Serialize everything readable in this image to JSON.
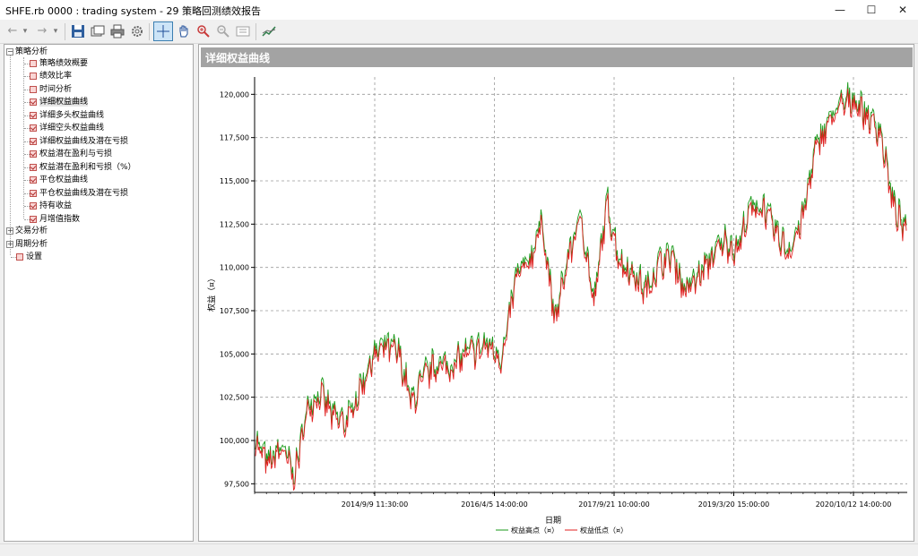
{
  "window": {
    "title": "SHFE.rb 0000 : trading system - 29 策略回测绩效报告",
    "minimize_glyph": "—",
    "maximize_glyph": "☐",
    "close_glyph": "✕"
  },
  "toolbar": {
    "back_glyph": "←",
    "back_drop_glyph": "▾",
    "forward_glyph": "→",
    "forward_drop_glyph": "▾",
    "icons": [
      "save-icon",
      "window-icon",
      "print-icon",
      "settings-icon",
      "crosshair-icon",
      "hand-icon",
      "zoom-in-icon",
      "zoom-out-icon",
      "page-icon",
      "chart-icon"
    ]
  },
  "tree": {
    "groups": [
      {
        "label": "策略分析",
        "expanded": true
      },
      {
        "label": "交易分析",
        "expanded": false
      },
      {
        "label": "周期分析",
        "expanded": false
      }
    ],
    "items": [
      {
        "label": "策略绩效概要",
        "icon": "table-icon"
      },
      {
        "label": "绩效比率",
        "icon": "table-icon"
      },
      {
        "label": "时间分析",
        "icon": "table-icon"
      },
      {
        "label": "详细权益曲线",
        "icon": "chart-icon",
        "selected": true
      },
      {
        "label": "详细多头权益曲线",
        "icon": "chart-icon"
      },
      {
        "label": "详细空头权益曲线",
        "icon": "chart-icon"
      },
      {
        "label": "详细权益曲线及潜在亏损",
        "icon": "chart-icon"
      },
      {
        "label": "权益潜在盈利与亏损",
        "icon": "chart-icon"
      },
      {
        "label": "权益潜在盈利和亏损（%）",
        "icon": "chart-icon"
      },
      {
        "label": "平仓权益曲线",
        "icon": "chart-icon"
      },
      {
        "label": "平仓权益曲线及潜在亏损",
        "icon": "chart-icon"
      },
      {
        "label": "持有收益",
        "icon": "chart-icon"
      },
      {
        "label": "月增值指数",
        "icon": "chart-icon"
      }
    ],
    "settings_label": "设置"
  },
  "panel": {
    "title": "详细权益曲线"
  },
  "colors": {
    "high_series": "#1a9a1a",
    "low_series": "#e02020",
    "panel_header": "#a3a3a3"
  },
  "chart_data": {
    "type": "line",
    "xlabel": "日期",
    "ylabel": "权益（¤）",
    "ylim": [
      97000,
      121000
    ],
    "y_ticks": [
      97500,
      100000,
      102500,
      105000,
      107500,
      110000,
      112500,
      115000,
      117500,
      120000
    ],
    "y_tick_labels": [
      "97,500",
      "100,000",
      "102,500",
      "105,000",
      "107,500",
      "110,000",
      "112,500",
      "115,000",
      "117,500",
      "120,000"
    ],
    "x_tick_labels": [
      "2014/9/9 11:30:00",
      "2016/4/5 14:00:00",
      "2017/9/21 10:00:00",
      "2019/3/20 15:00:00",
      "2020/10/12 14:00:00"
    ],
    "grid": true,
    "legend_position": "bottom",
    "series": [
      {
        "name": "权益高点（¤）",
        "color": "#1a9a1a"
      },
      {
        "name": "权益低点（¤）",
        "color": "#e02020"
      }
    ],
    "x": [
      "2013/1",
      "2013/3",
      "2013/5",
      "2013/7",
      "2013/9",
      "2013/11",
      "2014/1",
      "2014/3",
      "2014/5",
      "2014/7",
      "2014/9",
      "2014/11",
      "2015/1",
      "2015/3",
      "2015/5",
      "2015/7",
      "2015/9",
      "2015/11",
      "2016/1",
      "2016/3",
      "2016/5",
      "2016/7",
      "2016/9",
      "2016/11",
      "2017/1",
      "2017/3",
      "2017/5",
      "2017/7",
      "2017/9",
      "2017/11",
      "2018/1",
      "2018/3",
      "2018/5",
      "2018/7",
      "2018/9",
      "2018/11",
      "2019/1",
      "2019/3",
      "2019/5",
      "2019/7",
      "2019/9",
      "2019/11",
      "2020/1",
      "2020/3",
      "2020/5",
      "2020/7",
      "2020/9",
      "2020/11",
      "2021/1",
      "2021/3",
      "2021/5"
    ],
    "values": [
      99800,
      98500,
      99500,
      97800,
      101800,
      102600,
      101200,
      100900,
      102800,
      104700,
      105300,
      104900,
      102000,
      103600,
      104300,
      104100,
      104800,
      105100,
      105400,
      104600,
      109300,
      110100,
      112600,
      106700,
      110400,
      112900,
      107700,
      113600,
      110200,
      109500,
      108500,
      110100,
      110600,
      108500,
      109300,
      110400,
      111400,
      110900,
      113200,
      113400,
      111800,
      110800,
      112600,
      116600,
      118300,
      119200,
      119600,
      118600,
      117800,
      113400,
      111800
    ]
  }
}
